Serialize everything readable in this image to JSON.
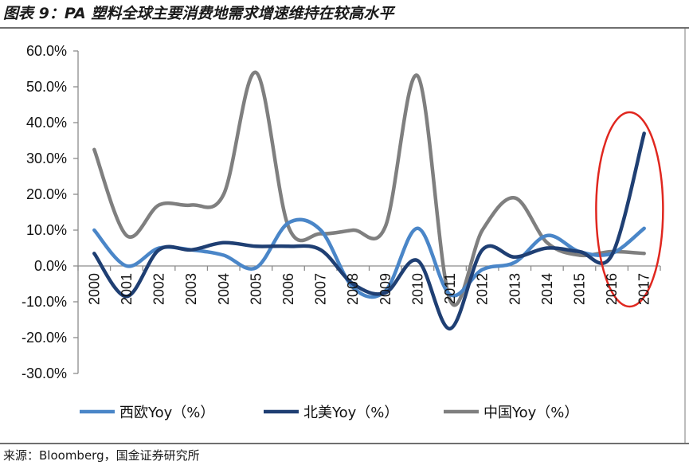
{
  "figure": {
    "title": "图表 9：PA 塑料全球主要消费地需求增速维持在较高水平",
    "source": "来源：Bloomberg，国金证券研究所"
  },
  "chart_data": {
    "type": "line",
    "categories": [
      "2000",
      "2001",
      "2002",
      "2003",
      "2004",
      "2005",
      "2006",
      "2007",
      "2008",
      "2009",
      "2010",
      "2011",
      "2012",
      "2013",
      "2014",
      "2015",
      "2016",
      "2017"
    ],
    "ylim": [
      -30,
      60
    ],
    "yticks": [
      60,
      50,
      40,
      30,
      20,
      10,
      0,
      -10,
      -20,
      -30
    ],
    "ytick_labels": [
      "60.0%",
      "50.0%",
      "40.0%",
      "30.0%",
      "20.0%",
      "10.0%",
      "0.0%",
      "-10.0%",
      "-20.0%",
      "-30.0%"
    ],
    "grid": false,
    "legend_position": "bottom",
    "series": [
      {
        "name": "西欧Yoy（%）",
        "color": "#4a86c8",
        "values": [
          10,
          0,
          5,
          4.5,
          3,
          -0.5,
          12,
          10,
          -6,
          -7,
          10.5,
          -8,
          -1,
          1,
          8.5,
          4,
          3.5,
          10.5
        ]
      },
      {
        "name": "北美Yoy（%）",
        "color": "#1f3f73",
        "values": [
          3.5,
          -8.5,
          4.5,
          4.5,
          6.5,
          5.5,
          5.5,
          4.5,
          -5,
          -7.5,
          1.5,
          -17.5,
          4.5,
          2.5,
          5,
          4,
          3,
          37
        ]
      },
      {
        "name": "中国Yoy（%）",
        "color": "#7f7f7f",
        "values": [
          32.5,
          8.5,
          17,
          17,
          20,
          54,
          11,
          9,
          10,
          11,
          53,
          -9.5,
          10,
          19,
          6.5,
          3,
          4,
          3.5
        ]
      }
    ],
    "annotation": {
      "shape": "ellipse",
      "color": "#e0271f",
      "categories": [
        "2016",
        "2017"
      ]
    }
  }
}
